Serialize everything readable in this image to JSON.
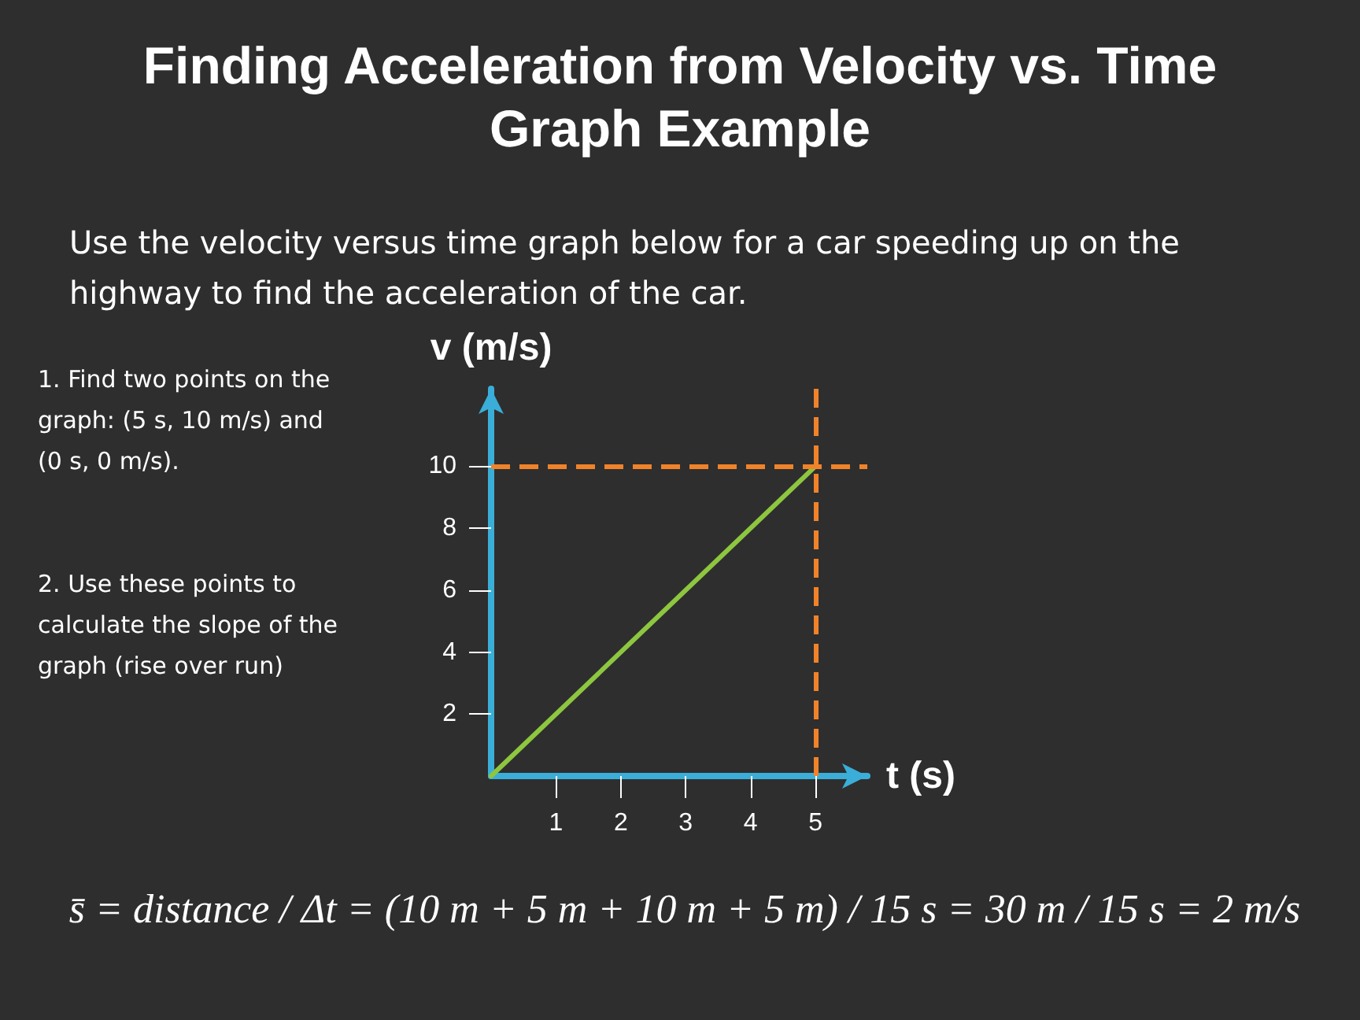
{
  "chart_data": {
    "type": "line",
    "title": "Finding Acceleration from Velocity vs. Time Graph Example",
    "subtitle": "Use the velocity versus time graph below for a car speeding up on the highway to find the acceleration of the car.",
    "xlabel": "t (s)",
    "ylabel": "v (m/s)",
    "x": [
      0,
      5
    ],
    "series": [
      {
        "color": "#8dc63f",
        "values": [
          0,
          10
        ]
      }
    ],
    "xlim": [
      0,
      5.8
    ],
    "ylim": [
      0,
      12.5
    ],
    "xticks": [
      1,
      2,
      3,
      4,
      5
    ],
    "yticks": [
      2,
      4,
      6,
      8,
      10
    ],
    "ref_lines": [
      {
        "axis": "x",
        "value": 5,
        "color": "#f0832a",
        "line_style": "dashed"
      },
      {
        "axis": "y",
        "value": 10,
        "color": "#f0832a",
        "line_style": "dashed"
      }
    ],
    "annotations": [
      "1. Find two points on the graph: (5 s, 10 m/s) and (0 s, 0 m/s).",
      "2. Use these points to calculate the slope of the graph (rise over run)",
      "s̄ = distance / Δt = (10 m + 5 m + 10 m + 5 m) / 15 s = 30 m / 15 s = 2 m/s"
    ],
    "grid": false,
    "marker": "none",
    "line_style": "solid"
  }
}
